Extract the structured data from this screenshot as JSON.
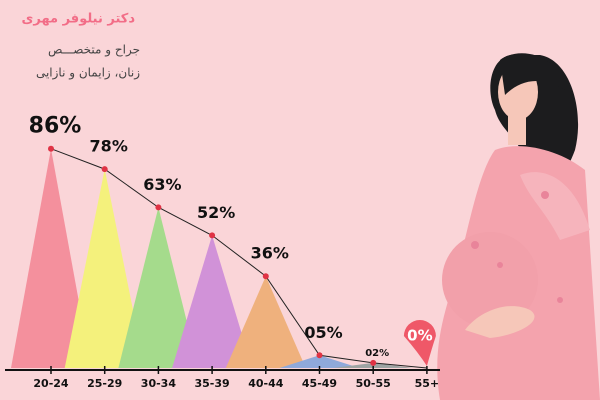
{
  "chart_data": {
    "type": "triangle",
    "title": "دکتر نیلوفر مهری",
    "subtitle": [
      "جراح و متخصـــص",
      "زنان، زایمان و نازایی"
    ],
    "categories": [
      "20-24",
      "25-29",
      "30-34",
      "35-39",
      "40-44",
      "45-49",
      "50-55",
      "55+"
    ],
    "values": [
      86,
      78,
      63,
      52,
      36,
      5,
      2,
      0
    ],
    "value_labels": [
      "86%",
      "78%",
      "63%",
      "52%",
      "36%",
      "05%",
      "02%",
      "0%"
    ],
    "colors": [
      "#f4909d",
      "#f4f17c",
      "#a5db8c",
      "#d192d8",
      "#efb17d",
      "#8fa9da",
      "#9da4a3",
      "#e8e8e8"
    ],
    "line_color": "#222222",
    "point_color": "#e03345",
    "pin_color": "#ef5868"
  }
}
